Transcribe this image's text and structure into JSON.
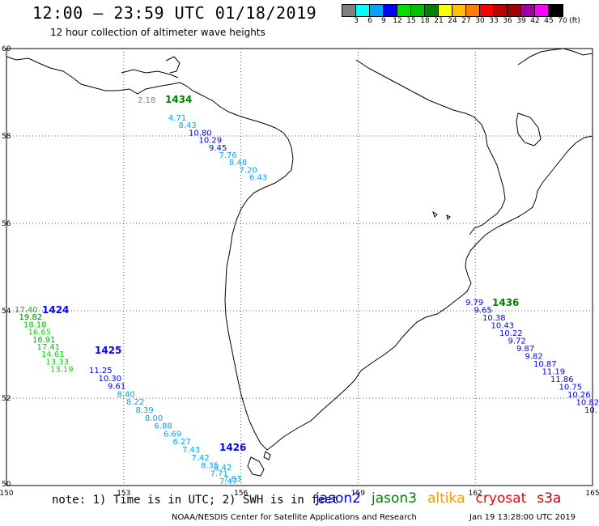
{
  "header": {
    "title": "12:00 — 23:59 UTC 01/18/2019",
    "subtitle": "12 hour collection of altimeter wave heights"
  },
  "legend": {
    "unit": "(ft)",
    "levels": [
      {
        "label": "3",
        "color": "#808080"
      },
      {
        "label": "6",
        "color": "#00ffff"
      },
      {
        "label": "9",
        "color": "#00a5ff"
      },
      {
        "label": "12",
        "color": "#0000ff"
      },
      {
        "label": "15",
        "color": "#00e000"
      },
      {
        "label": "18",
        "color": "#00c000"
      },
      {
        "label": "21",
        "color": "#008000"
      },
      {
        "label": "24",
        "color": "#ffff00"
      },
      {
        "label": "27",
        "color": "#ffc000"
      },
      {
        "label": "30",
        "color": "#ff8000"
      },
      {
        "label": "33",
        "color": "#ff0000"
      },
      {
        "label": "36",
        "color": "#c00000"
      },
      {
        "label": "39",
        "color": "#a00000"
      },
      {
        "label": "42",
        "color": "#a000a0"
      },
      {
        "label": "45",
        "color": "#ff00ff"
      },
      {
        "label": "70",
        "color": "#000000"
      }
    ]
  },
  "axes": {
    "lat_labels": [
      "50",
      "52",
      "54",
      "56",
      "58",
      "60"
    ],
    "lon_labels": [
      "150",
      "153",
      "156",
      "159",
      "162",
      "165"
    ]
  },
  "tracks": [
    {
      "pass": "1434",
      "pass_color": "#008000",
      "points": [
        {
          "v": "2.18",
          "c": "#808080"
        },
        {
          "v": "4.71",
          "c": "#00a5ff"
        },
        {
          "v": "8.43",
          "c": "#00a5ff"
        },
        {
          "v": "10.80",
          "c": "#0000ff"
        },
        {
          "v": "10.29",
          "c": "#0000ff"
        },
        {
          "v": "9.45",
          "c": "#0000ff"
        },
        {
          "v": "7.76",
          "c": "#00a5ff"
        },
        {
          "v": "8.48",
          "c": "#00a5ff"
        },
        {
          "v": "7.20",
          "c": "#00a5ff"
        },
        {
          "v": "6.43",
          "c": "#00a5ff"
        }
      ]
    },
    {
      "pass": "1424",
      "pass_color": "#0000ff",
      "points": [
        {
          "v": "17.40",
          "c": "#00c000"
        },
        {
          "v": "19.82",
          "c": "#008000"
        },
        {
          "v": "18.18",
          "c": "#00c000"
        },
        {
          "v": "16.65",
          "c": "#00e000"
        },
        {
          "v": "16.91",
          "c": "#00c000"
        },
        {
          "v": "17.41",
          "c": "#00c000"
        },
        {
          "v": "14.61",
          "c": "#00e000"
        },
        {
          "v": "13.33",
          "c": "#00e000"
        },
        {
          "v": "13.19",
          "c": "#00e000"
        }
      ]
    },
    {
      "pass": "1425",
      "pass_color": "#0000ff",
      "points": [
        {
          "v": "11.25",
          "c": "#0000ff"
        },
        {
          "v": "10.30",
          "c": "#0000ff"
        },
        {
          "v": "9.61",
          "c": "#0000ff"
        },
        {
          "v": "8.40",
          "c": "#00a5ff"
        },
        {
          "v": "8.22",
          "c": "#00a5ff"
        },
        {
          "v": "8.39",
          "c": "#00a5ff"
        },
        {
          "v": "8.00",
          "c": "#00a5ff"
        },
        {
          "v": "6.88",
          "c": "#00a5ff"
        },
        {
          "v": "6.69",
          "c": "#00a5ff"
        },
        {
          "v": "6.27",
          "c": "#00a5ff"
        },
        {
          "v": "7.43",
          "c": "#00a5ff"
        },
        {
          "v": "7.42",
          "c": "#00a5ff"
        },
        {
          "v": "8.35",
          "c": "#00a5ff"
        },
        {
          "v": "7.71",
          "c": "#00a5ff"
        },
        {
          "v": "7.47",
          "c": "#00a5ff"
        }
      ]
    },
    {
      "pass": "1426",
      "pass_color": "#0000ff",
      "points": [
        {
          "v": "8.42",
          "c": "#00a5ff"
        },
        {
          "v": "7.83",
          "c": "#00a5ff"
        }
      ]
    },
    {
      "pass": "1436",
      "pass_color": "#008000",
      "points": [
        {
          "v": "9.79",
          "c": "#0000ff"
        },
        {
          "v": "9.65",
          "c": "#0000ff"
        },
        {
          "v": "10.38",
          "c": "#0000ff"
        },
        {
          "v": "10.43",
          "c": "#0000ff"
        },
        {
          "v": "10.22",
          "c": "#0000ff"
        },
        {
          "v": "9.72",
          "c": "#0000ff"
        },
        {
          "v": "9.87",
          "c": "#0000ff"
        },
        {
          "v": "9.82",
          "c": "#0000ff"
        },
        {
          "v": "10.87",
          "c": "#0000ff"
        },
        {
          "v": "11.19",
          "c": "#0000ff"
        },
        {
          "v": "11.86",
          "c": "#0000ff"
        },
        {
          "v": "10.75",
          "c": "#0000ff"
        },
        {
          "v": "10.26",
          "c": "#0000ff"
        },
        {
          "v": "10.82",
          "c": "#0000ff"
        },
        {
          "v": "10.",
          "c": "#0000ff"
        }
      ]
    }
  ],
  "footer": {
    "note": "note: 1) Time is in UTC; 2) SWH is in feet",
    "satellites": [
      {
        "name": "jason2",
        "color": "#0000ff"
      },
      {
        "name": "jason3",
        "color": "#008000"
      },
      {
        "name": "altika",
        "color": "#ff9900"
      },
      {
        "name": "cryosat",
        "color": "#ff0000"
      },
      {
        "name": "s3a",
        "color": "#c00000"
      }
    ],
    "credit": "NOAA/NESDIS Center for Satellite Applications and Research",
    "timestamp": "Jan 19 13:28:00 UTC 2019"
  }
}
